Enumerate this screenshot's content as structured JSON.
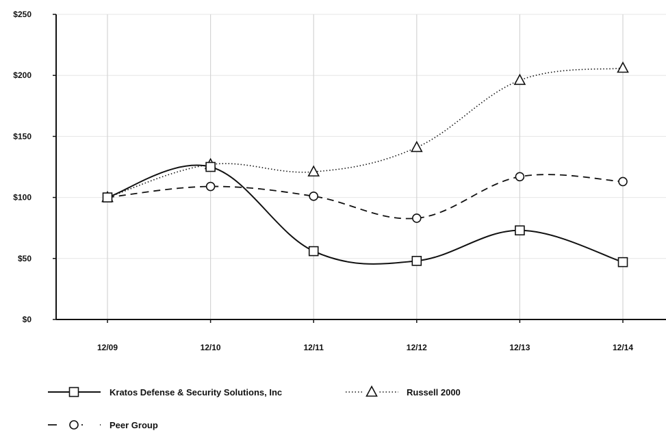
{
  "chart_data": {
    "type": "line",
    "title": "",
    "xlabel": "",
    "ylabel": "",
    "categories": [
      "12/09",
      "12/10",
      "12/11",
      "12/12",
      "12/13",
      "12/14"
    ],
    "ylim": [
      0,
      250
    ],
    "yticks": [
      0,
      50,
      100,
      150,
      200,
      250
    ],
    "ytick_labels": [
      "$0",
      "$50",
      "$100",
      "$150",
      "$200",
      "$250"
    ],
    "grid": "vertical",
    "legend_position": "bottom-left",
    "series": [
      {
        "name": "Kratos Defense & Security Solutions, Inc",
        "values": [
          100,
          125,
          56,
          48,
          73,
          47
        ],
        "marker": "square",
        "line": "solid",
        "color": "#111111"
      },
      {
        "name": "Russell 2000",
        "values": [
          100,
          127,
          121,
          141,
          196,
          206
        ],
        "marker": "triangle",
        "line": "dotted",
        "color": "#111111"
      },
      {
        "name": "Peer Group",
        "values": [
          100,
          109,
          101,
          83,
          117,
          113
        ],
        "marker": "circle",
        "line": "dashed",
        "color": "#111111"
      }
    ]
  }
}
